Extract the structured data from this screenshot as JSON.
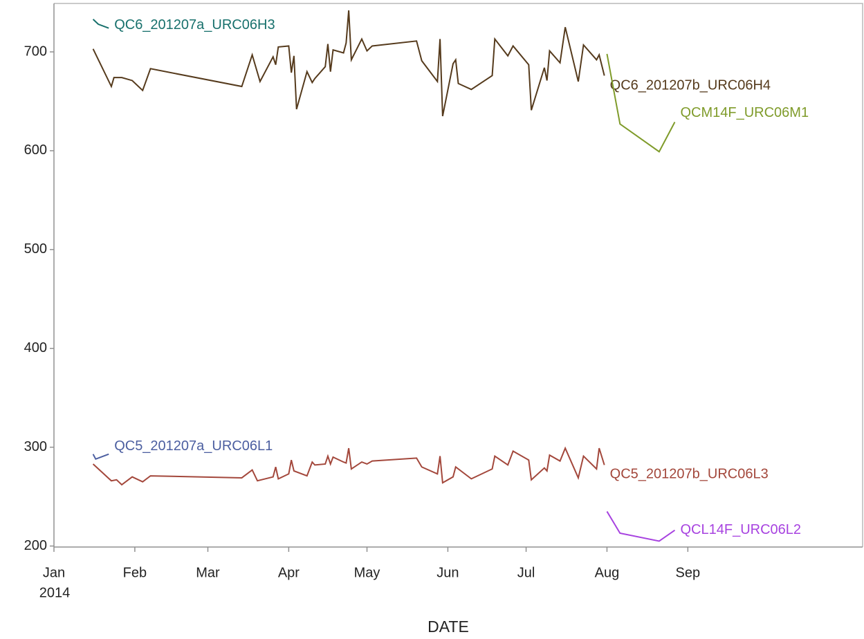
{
  "chart_data": {
    "type": "line",
    "x_label": "DATE",
    "x_year_label": "2014",
    "xlim": [
      0,
      310
    ],
    "xticks": [
      {
        "value": 0,
        "label": "Jan"
      },
      {
        "value": 31,
        "label": "Feb"
      },
      {
        "value": 59,
        "label": "Mar"
      },
      {
        "value": 90,
        "label": "Apr"
      },
      {
        "value": 120,
        "label": "May"
      },
      {
        "value": 151,
        "label": "Jun"
      },
      {
        "value": 181,
        "label": "Jul"
      },
      {
        "value": 212,
        "label": "Aug"
      },
      {
        "value": 243,
        "label": "Sep"
      }
    ],
    "ylim": [
      199,
      749
    ],
    "yticks": [
      200,
      300,
      400,
      500,
      600,
      700
    ],
    "series": [
      {
        "name": "QC6_201207a_URC06H3",
        "color": "#17706c",
        "x": [
          15,
          17,
          21
        ],
        "values": [
          733,
          728,
          724
        ]
      },
      {
        "name": "QC6_201207b_URC06H4",
        "color": "#553a1c",
        "x": [
          15,
          22,
          23,
          26,
          30,
          34,
          37,
          72,
          76,
          79,
          84,
          85,
          86,
          90,
          91,
          92,
          93,
          97,
          99,
          100,
          104,
          105,
          106,
          107,
          111,
          112,
          113,
          114,
          118,
          120,
          122,
          139,
          141,
          147,
          148,
          149,
          153,
          154,
          155,
          160,
          168,
          169,
          174,
          176,
          182,
          183,
          188,
          189,
          190,
          194,
          196,
          201,
          203,
          208,
          209,
          211
        ],
        "values": [
          703,
          665,
          674,
          674,
          671,
          661,
          683,
          665,
          697,
          670,
          695,
          687,
          705,
          706,
          679,
          696,
          642,
          680,
          669,
          673,
          685,
          708,
          680,
          702,
          699,
          709,
          742,
          692,
          713,
          701,
          706,
          711,
          691,
          670,
          713,
          635,
          688,
          692,
          668,
          662,
          676,
          713,
          696,
          706,
          687,
          641,
          684,
          671,
          701,
          689,
          725,
          670,
          707,
          692,
          697,
          676
        ]
      },
      {
        "name": "QCM14F_URC06M1",
        "color": "#7f9b2a",
        "x": [
          212,
          217,
          232,
          238
        ],
        "values": [
          698,
          627,
          599,
          629
        ]
      },
      {
        "name": "QC5_201207a_URC06L1",
        "color": "#4b5ea0",
        "x": [
          15,
          16,
          21
        ],
        "values": [
          293,
          288,
          293
        ]
      },
      {
        "name": "QC5_201207b_URC06L3",
        "color": "#a3473b",
        "x": [
          15,
          22,
          24,
          26,
          30,
          34,
          37,
          72,
          76,
          78,
          84,
          85,
          86,
          90,
          91,
          92,
          97,
          99,
          100,
          104,
          105,
          106,
          107,
          111,
          112,
          113,
          114,
          118,
          120,
          122,
          139,
          141,
          147,
          148,
          149,
          153,
          154,
          160,
          168,
          169,
          174,
          176,
          182,
          183,
          188,
          189,
          190,
          194,
          196,
          201,
          203,
          208,
          209,
          211
        ],
        "values": [
          283,
          266,
          267,
          262,
          270,
          265,
          271,
          269,
          277,
          266,
          270,
          280,
          268,
          273,
          287,
          276,
          271,
          285,
          282,
          283,
          291,
          283,
          290,
          285,
          284,
          299,
          278,
          285,
          283,
          286,
          289,
          280,
          273,
          291,
          264,
          270,
          280,
          268,
          278,
          291,
          282,
          296,
          287,
          267,
          279,
          276,
          292,
          286,
          299,
          269,
          291,
          278,
          299,
          282
        ]
      },
      {
        "name": "QCL14F_URC06L2",
        "color": "#a742e0",
        "x": [
          212,
          217,
          232,
          238
        ],
        "values": [
          235,
          213,
          205,
          216
        ]
      }
    ]
  }
}
